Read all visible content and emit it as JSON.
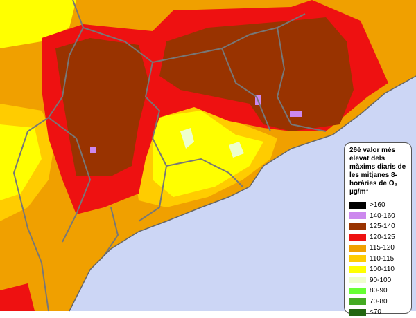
{
  "legend": {
    "title": "26è valor més elevat dels màxims diaris de les mitjanes 8-horàries de O₃ µg/m³",
    "items": [
      {
        "label": ">160",
        "color": "#000000"
      },
      {
        "label": "140-160",
        "color": "#cc88ee"
      },
      {
        "label": "125-140",
        "color": "#993300"
      },
      {
        "label": "120-125",
        "color": "#ee1111"
      },
      {
        "label": "115-120",
        "color": "#f0a000"
      },
      {
        "label": "110-115",
        "color": "#ffcc00"
      },
      {
        "label": "100-110",
        "color": "#ffff00"
      },
      {
        "label": "90-100",
        "color": "#eeffcc"
      },
      {
        "label": "80-90",
        "color": "#66ff33"
      },
      {
        "label": "70-80",
        "color": "#44aa22"
      },
      {
        "label": "<70",
        "color": "#226611"
      }
    ]
  }
}
